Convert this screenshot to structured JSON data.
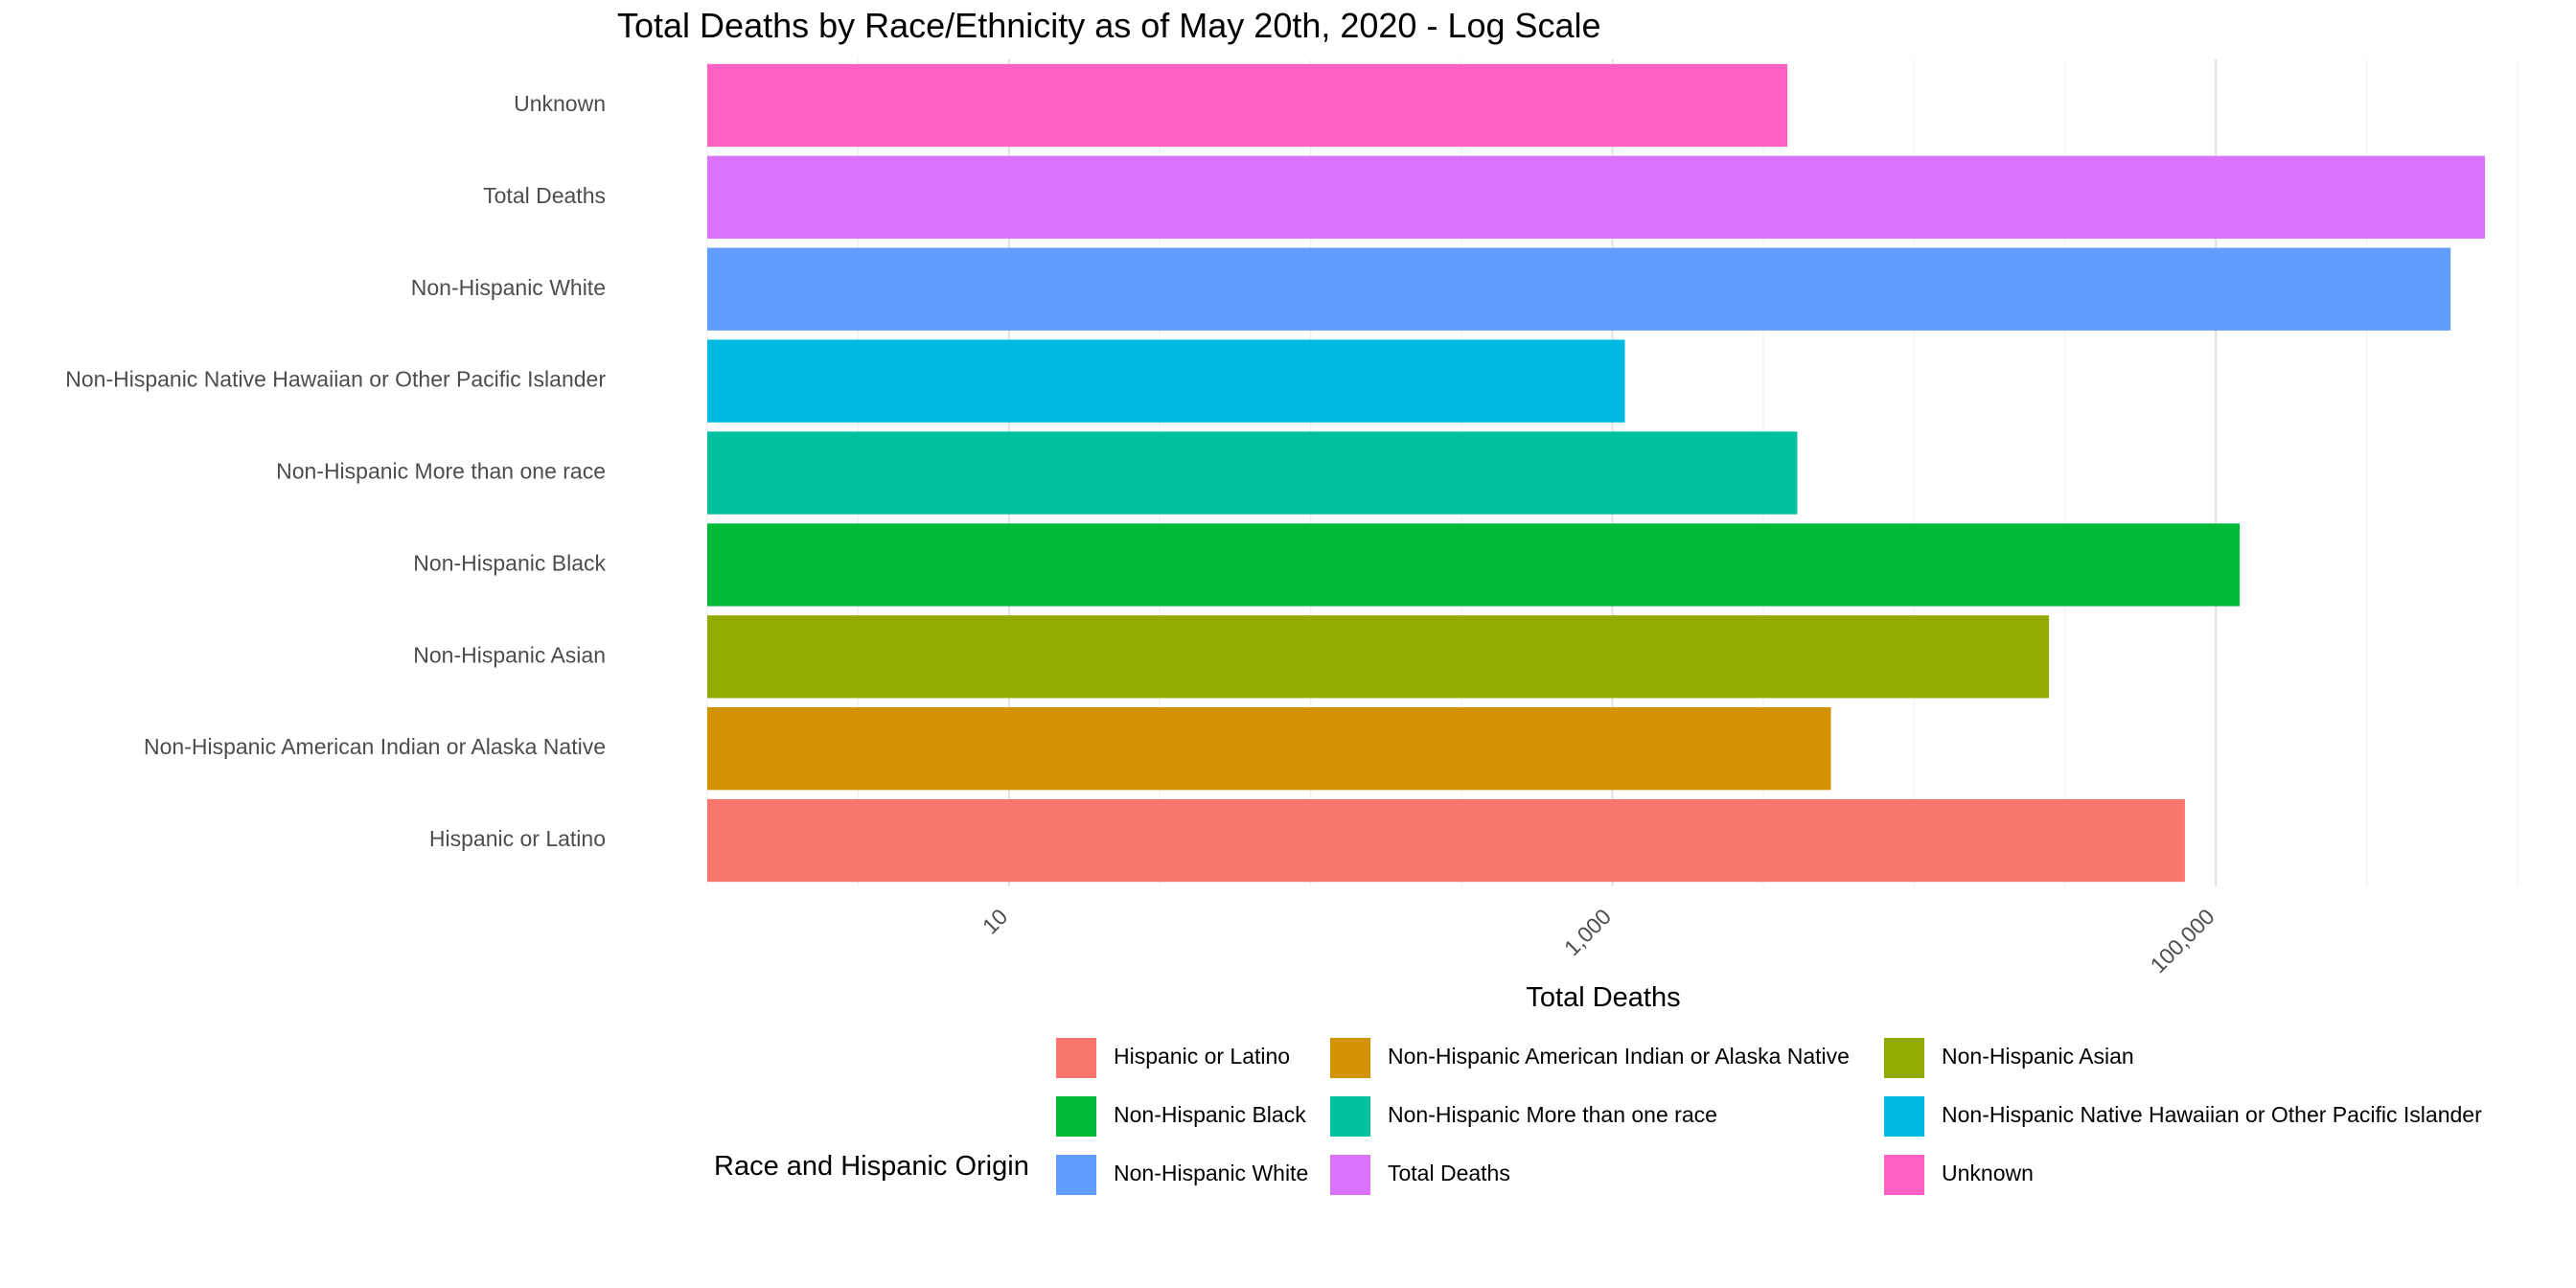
{
  "chart_data": {
    "type": "bar",
    "orientation": "horizontal",
    "title": "Total Deaths by Race/Ethnicity as of May 20th, 2020 - Log Scale",
    "xlabel": "Total Deaths",
    "ylabel": "",
    "x_scale": "log10",
    "xlim": [
      1,
      1000000
    ],
    "x_ticks": [
      {
        "value": 10,
        "label": "10"
      },
      {
        "value": 1000,
        "label": "1,000"
      },
      {
        "value": 100000,
        "label": "100,000"
      }
    ],
    "grid": true,
    "legend": {
      "title": "Race and Hispanic Origin",
      "placement": "bottom",
      "columns": 3
    },
    "categories": [
      "Hispanic or Latino",
      "Non-Hispanic American Indian or Alaska Native",
      "Non-Hispanic Asian",
      "Non-Hispanic Black",
      "Non-Hispanic More than one race",
      "Non-Hispanic Native Hawaiian or Other Pacific Islander",
      "Non-Hispanic White",
      "Total Deaths",
      "Unknown"
    ],
    "values": [
      79000,
      5300,
      28000,
      120000,
      4100,
      1100,
      600000,
      780000,
      3800
    ],
    "colors": [
      "#F8766D",
      "#D39200",
      "#93AA00",
      "#00BA38",
      "#00C19F",
      "#00B9E3",
      "#619CFF",
      "#DB72FB",
      "#FF61C3"
    ]
  }
}
